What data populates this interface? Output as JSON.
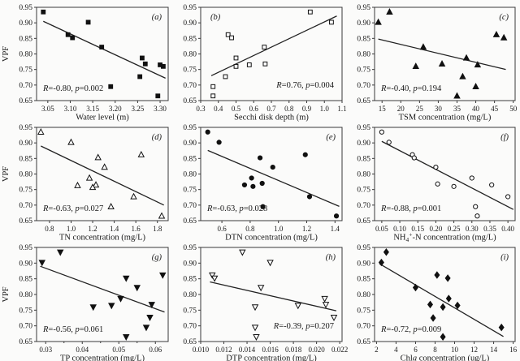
{
  "figure": {
    "ylabel": "VPF",
    "bg": "#fbfbfa",
    "axis_color": "#3a3a3a",
    "marker_color": "#111111",
    "trend_color": "#222222"
  },
  "yticks": [
    0.65,
    0.7,
    0.75,
    0.8,
    0.85,
    0.9,
    0.95
  ],
  "ytick_labels": [
    "0.65",
    "0.70",
    "0.75",
    "0.80",
    "0.85",
    "0.90",
    "0.95"
  ],
  "ylim": [
    0.65,
    0.95
  ],
  "chart_data": [
    {
      "id": "a",
      "panel": "(a)",
      "panel_pos": "tr",
      "type": "scatter",
      "marker": "square-filled",
      "show_ylabel": true,
      "xlabel": "Water level (m)",
      "xlim": [
        3.025,
        3.318
      ],
      "xticks": [
        3.05,
        3.1,
        3.15,
        3.2,
        3.25,
        3.3
      ],
      "xtick_labels": [
        "3.05",
        "3.10",
        "3.15",
        "3.20",
        "3.25",
        "3.30"
      ],
      "points": [
        [
          3.04,
          0.935
        ],
        [
          3.14,
          0.902
        ],
        [
          3.095,
          0.862
        ],
        [
          3.105,
          0.852
        ],
        [
          3.17,
          0.822
        ],
        [
          3.26,
          0.787
        ],
        [
          3.267,
          0.768
        ],
        [
          3.3,
          0.765
        ],
        [
          3.307,
          0.76
        ],
        [
          3.255,
          0.727
        ],
        [
          3.19,
          0.695
        ],
        [
          3.295,
          0.665
        ]
      ],
      "trend": [
        3.04,
        0.905,
        3.312,
        0.722
      ],
      "r": "-0.80",
      "p": "0.002",
      "anno_pos": "bl"
    },
    {
      "id": "b",
      "panel": "(b)",
      "panel_pos": "tl",
      "type": "scatter",
      "marker": "square-open",
      "show_ylabel": false,
      "xlabel": "Secchi disk depth (m)",
      "xlim": [
        0.3,
        1.1
      ],
      "xticks": [
        0.3,
        0.4,
        0.5,
        0.6,
        0.7,
        0.8,
        0.9,
        1.0,
        1.1
      ],
      "xtick_labels": [
        "0.3",
        "0.4",
        "0.5",
        "0.6",
        "0.7",
        "0.8",
        "0.9",
        "1.0",
        "1.1"
      ],
      "points": [
        [
          0.92,
          0.935
        ],
        [
          1.04,
          0.902
        ],
        [
          0.455,
          0.862
        ],
        [
          0.475,
          0.852
        ],
        [
          0.66,
          0.822
        ],
        [
          0.5,
          0.787
        ],
        [
          0.665,
          0.768
        ],
        [
          0.575,
          0.765
        ],
        [
          0.5,
          0.76
        ],
        [
          0.44,
          0.727
        ],
        [
          0.37,
          0.695
        ],
        [
          0.37,
          0.665
        ]
      ],
      "trend": [
        0.36,
        0.73,
        1.07,
        0.922
      ],
      "r": "0.76",
      "p": "0.004",
      "anno_pos": "br"
    },
    {
      "id": "c",
      "panel": "(c)",
      "panel_pos": "tr",
      "type": "scatter",
      "marker": "triangle-filled",
      "show_ylabel": false,
      "xlabel": "TSM concentration (mg/L)",
      "xlim": [
        13,
        50.5
      ],
      "xticks": [
        15,
        20,
        25,
        30,
        35,
        40,
        45,
        50
      ],
      "xtick_labels": [
        "15",
        "20",
        "25",
        "30",
        "35",
        "40",
        "45",
        "50"
      ],
      "points": [
        [
          17,
          0.935
        ],
        [
          14,
          0.902
        ],
        [
          45.5,
          0.862
        ],
        [
          47.5,
          0.852
        ],
        [
          26,
          0.822
        ],
        [
          37.5,
          0.787
        ],
        [
          31,
          0.768
        ],
        [
          40.5,
          0.765
        ],
        [
          24,
          0.76
        ],
        [
          36.5,
          0.727
        ],
        [
          40,
          0.695
        ],
        [
          35,
          0.665
        ]
      ],
      "trend": [
        14,
        0.848,
        48,
        0.75
      ],
      "r": "-0.40",
      "p": "0.194",
      "anno_pos": "bl"
    },
    {
      "id": "d",
      "panel": "(d)",
      "panel_pos": "tr",
      "type": "scatter",
      "marker": "triangle-open",
      "show_ylabel": true,
      "xlabel": "TN concentration (mg/L)",
      "xlim": [
        0.68,
        1.9
      ],
      "xticks": [
        0.8,
        1.0,
        1.2,
        1.4,
        1.6,
        1.8
      ],
      "xtick_labels": [
        "0.8",
        "1.0",
        "1.2",
        "1.4",
        "1.6",
        "1.8"
      ],
      "points": [
        [
          0.72,
          0.935
        ],
        [
          1.0,
          0.902
        ],
        [
          1.65,
          0.862
        ],
        [
          1.25,
          0.853
        ],
        [
          1.31,
          0.822
        ],
        [
          1.17,
          0.787
        ],
        [
          1.23,
          0.765
        ],
        [
          1.06,
          0.763
        ],
        [
          1.2,
          0.757
        ],
        [
          1.58,
          0.727
        ],
        [
          1.37,
          0.695
        ],
        [
          1.84,
          0.665
        ]
      ],
      "trend": [
        0.72,
        0.89,
        1.86,
        0.7
      ],
      "r": "-0.63",
      "p": "0.027",
      "anno_pos": "bl"
    },
    {
      "id": "e",
      "panel": "(e)",
      "panel_pos": "tr",
      "type": "scatter",
      "marker": "circle-filled",
      "show_ylabel": false,
      "xlabel": "DTN concentration (mg/L)",
      "xlim": [
        0.45,
        1.45
      ],
      "xticks": [
        0.6,
        0.8,
        1.0,
        1.2,
        1.4
      ],
      "xtick_labels": [
        "0.6",
        "0.8",
        "1.0",
        "1.2",
        "1.4"
      ],
      "points": [
        [
          0.5,
          0.935
        ],
        [
          0.58,
          0.902
        ],
        [
          1.19,
          0.862
        ],
        [
          0.87,
          0.852
        ],
        [
          0.96,
          0.822
        ],
        [
          0.81,
          0.787
        ],
        [
          0.885,
          0.77
        ],
        [
          0.76,
          0.765
        ],
        [
          0.82,
          0.76
        ],
        [
          1.22,
          0.727
        ],
        [
          0.89,
          0.695
        ],
        [
          1.41,
          0.665
        ]
      ],
      "trend": [
        0.5,
        0.876,
        1.43,
        0.696
      ],
      "r": "-0.63",
      "p": "0.028",
      "anno_pos": "bl"
    },
    {
      "id": "f",
      "panel": "(f)",
      "panel_pos": "tr",
      "type": "scatter",
      "marker": "circle-open",
      "show_ylabel": false,
      "xlabel": "NH4+-N concentration (mg/L)",
      "xlabel_parts": [
        {
          "t": "NH"
        },
        {
          "t": "4",
          "sub": true
        },
        {
          "t": "+",
          "sup": true
        },
        {
          "t": "-N concentration (mg/L)"
        }
      ],
      "xlim": [
        0.03,
        0.42
      ],
      "xticks": [
        0.05,
        0.1,
        0.15,
        0.2,
        0.25,
        0.3,
        0.35,
        0.4
      ],
      "xtick_labels": [
        "0.05",
        "0.10",
        "0.15",
        "0.20",
        "0.25",
        "0.30",
        "0.35",
        "0.40"
      ],
      "points": [
        [
          0.05,
          0.935
        ],
        [
          0.07,
          0.902
        ],
        [
          0.135,
          0.862
        ],
        [
          0.14,
          0.852
        ],
        [
          0.2,
          0.822
        ],
        [
          0.3,
          0.787
        ],
        [
          0.205,
          0.768
        ],
        [
          0.355,
          0.765
        ],
        [
          0.25,
          0.76
        ],
        [
          0.4,
          0.727
        ],
        [
          0.31,
          0.695
        ],
        [
          0.315,
          0.665
        ]
      ],
      "trend": [
        0.05,
        0.905,
        0.415,
        0.686
      ],
      "r": "-0.88",
      "p": "0.001",
      "anno_pos": "bl"
    },
    {
      "id": "g",
      "panel": "(g)",
      "panel_pos": "tr",
      "type": "scatter",
      "marker": "tridown-filled",
      "show_ylabel": true,
      "minor_mid": true,
      "xlabel": "TP concentration (mg/L)",
      "xlim": [
        0.0275,
        0.0635
      ],
      "xticks": [
        0.03,
        0.04,
        0.05,
        0.06
      ],
      "xtick_labels": [
        "0.03",
        "0.04",
        "0.05",
        "0.06"
      ],
      "points": [
        [
          0.034,
          0.935
        ],
        [
          0.029,
          0.902
        ],
        [
          0.062,
          0.862
        ],
        [
          0.052,
          0.852
        ],
        [
          0.055,
          0.822
        ],
        [
          0.0505,
          0.787
        ],
        [
          0.059,
          0.768
        ],
        [
          0.048,
          0.765
        ],
        [
          0.043,
          0.76
        ],
        [
          0.0585,
          0.727
        ],
        [
          0.0575,
          0.695
        ],
        [
          0.052,
          0.665
        ]
      ],
      "trend": [
        0.0285,
        0.89,
        0.0625,
        0.744
      ],
      "r": "-0.56",
      "p": "0.061",
      "anno_pos": "bl"
    },
    {
      "id": "h",
      "panel": "(h)",
      "panel_pos": "tr",
      "type": "scatter",
      "marker": "tridown-open",
      "show_ylabel": false,
      "xlabel": "DTP concentration (mg/L)",
      "xlim": [
        0.01,
        0.0222
      ],
      "xticks": [
        0.01,
        0.012,
        0.014,
        0.016,
        0.018,
        0.02,
        0.022
      ],
      "xtick_labels": [
        "0.010",
        "0.012",
        "0.014",
        "0.016",
        "0.018",
        "0.020",
        "0.022"
      ],
      "points": [
        [
          0.0136,
          0.935
        ],
        [
          0.016,
          0.902
        ],
        [
          0.011,
          0.862
        ],
        [
          0.0112,
          0.852
        ],
        [
          0.0152,
          0.822
        ],
        [
          0.0207,
          0.787
        ],
        [
          0.0208,
          0.768
        ],
        [
          0.0184,
          0.765
        ],
        [
          0.0147,
          0.76
        ],
        [
          0.0215,
          0.727
        ],
        [
          0.0147,
          0.695
        ],
        [
          0.0148,
          0.665
        ]
      ],
      "trend": [
        0.0108,
        0.84,
        0.0217,
        0.748
      ],
      "r": "-0.39",
      "p": "0.207",
      "anno_pos": "br"
    },
    {
      "id": "i",
      "panel": "(i)",
      "panel_pos": "tr",
      "type": "scatter",
      "marker": "diamond-filled",
      "show_ylabel": false,
      "xlabel": "Chla concentration (ug/L)",
      "xlabel_parts": [
        {
          "t": "Chl"
        },
        {
          "t": "a",
          "italic": true
        },
        {
          "t": " concentration (ug/L)"
        }
      ],
      "xlim": [
        1.8,
        16.2
      ],
      "xticks": [
        2,
        4,
        6,
        8,
        10,
        12,
        14,
        16
      ],
      "xtick_labels": [
        "2",
        "4",
        "6",
        "8",
        "10",
        "12",
        "14",
        "16"
      ],
      "points": [
        [
          3.0,
          0.935
        ],
        [
          2.5,
          0.902
        ],
        [
          8.2,
          0.862
        ],
        [
          9.3,
          0.852
        ],
        [
          6.0,
          0.822
        ],
        [
          9.4,
          0.787
        ],
        [
          7.5,
          0.768
        ],
        [
          10.3,
          0.765
        ],
        [
          8.8,
          0.76
        ],
        [
          7.8,
          0.725
        ],
        [
          14.8,
          0.695
        ],
        [
          8.8,
          0.665
        ]
      ],
      "trend": [
        2.3,
        0.898,
        15.0,
        0.666
      ],
      "r": "-0.72",
      "p": "0.009",
      "anno_pos": "bl"
    }
  ]
}
